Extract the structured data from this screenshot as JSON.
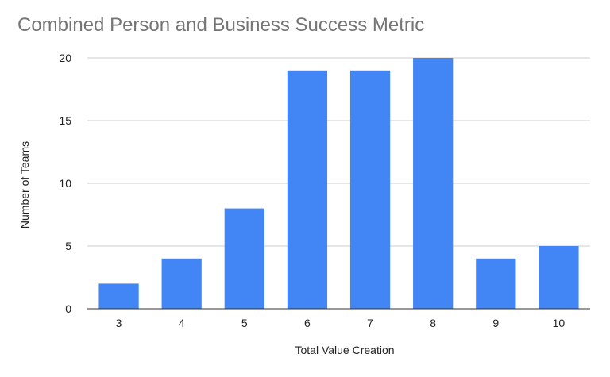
{
  "chart_data": {
    "type": "bar",
    "title": "Combined Person and Business Success Metric",
    "xlabel": "Total Value Creation",
    "ylabel": "Number of Teams",
    "categories": [
      "3",
      "4",
      "5",
      "6",
      "7",
      "8",
      "9",
      "10"
    ],
    "values": [
      2,
      4,
      8,
      19,
      19,
      20,
      4,
      5
    ],
    "ylim": [
      0,
      20
    ],
    "yticks": [
      "0",
      "5",
      "10",
      "15",
      "20"
    ],
    "grid": true,
    "legend": "none",
    "bar_color": "#4285F4"
  }
}
